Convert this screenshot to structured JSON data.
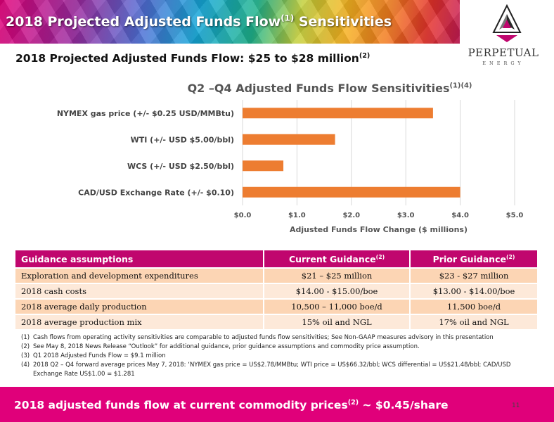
{
  "header": {
    "title": "2018 Projected Adjusted Funds Flow",
    "title_sup": "(1)",
    "title_suffix": " Sensitivities"
  },
  "logo": {
    "name": "PERPETUAL",
    "tagline": "ENERGY"
  },
  "subheading": {
    "text": "2018 Projected Adjusted Funds Flow: $25 to $28 million",
    "sup": "(2)"
  },
  "chart_data": {
    "type": "bar",
    "orientation": "horizontal",
    "title": "Q2 –Q4 Adjusted Funds Flow Sensitivities",
    "title_sup": "(1)(4)",
    "categories": [
      "NYMEX  gas price (+/- $0.25 USD/MMBtu)",
      "WTI (+/- USD $5.00/bbl)",
      "WCS (+/- USD $2.50/bbl)",
      "CAD/USD Exchange Rate (+/- $0.10)"
    ],
    "values": [
      3.5,
      1.7,
      0.75,
      4.0
    ],
    "xlabel": "Adjusted Funds Flow Change ($ millions)",
    "ylabel": "",
    "xlim": [
      0,
      5
    ],
    "ticks": [
      "$0.0",
      "$1.0",
      "$2.0",
      "$3.0",
      "$4.0",
      "$5.0"
    ],
    "grid": true,
    "bar_color": "#ed7d31"
  },
  "table": {
    "headers": [
      "Guidance assumptions",
      "Current Guidance",
      "Prior Guidance"
    ],
    "header_sups": [
      "",
      "(2)",
      "(2)"
    ],
    "rows": [
      [
        "Exploration and development expenditures",
        "$21 – $25 million",
        "$23 - $27 million"
      ],
      [
        "2018 cash costs",
        "$14.00 - $15.00/boe",
        "$13.00 - $14.00/boe"
      ],
      [
        "2018 average daily production",
        "10,500 – 11,000 boe/d",
        "11,500 boe/d"
      ],
      [
        "2018 average production mix",
        "15% oil and NGL",
        "17% oil and NGL"
      ]
    ]
  },
  "footnotes": [
    {
      "n": "(1)",
      "text": "Cash flows from operating activity sensitivities are comparable to adjusted funds flow sensitivities; See Non-GAAP measures advisory in this presentation"
    },
    {
      "n": "(2)",
      "text": "See May 8, 2018 News Release “Outlook” for additional guidance, prior guidance assumptions and commodity price assumption."
    },
    {
      "n": "(3)",
      "text": "Q1 2018 Adjusted Funds Flow = $9.1 million"
    },
    {
      "n": "(4)",
      "text": "2018 Q2 – Q4 forward average prices May 7, 2018: ‘NYMEX gas price = US$2.78/MMBtu; WTI price = US$66.32/bbl; WCS differential = US$21.48/bbl; CAD/USD Exchange Rate US$1.00 = $1.281"
    }
  ],
  "footer": {
    "text": "2018 adjusted funds flow at current commodity prices",
    "sup": "(2)",
    "suffix": " ~ $0.45/share"
  },
  "page_number": "11"
}
